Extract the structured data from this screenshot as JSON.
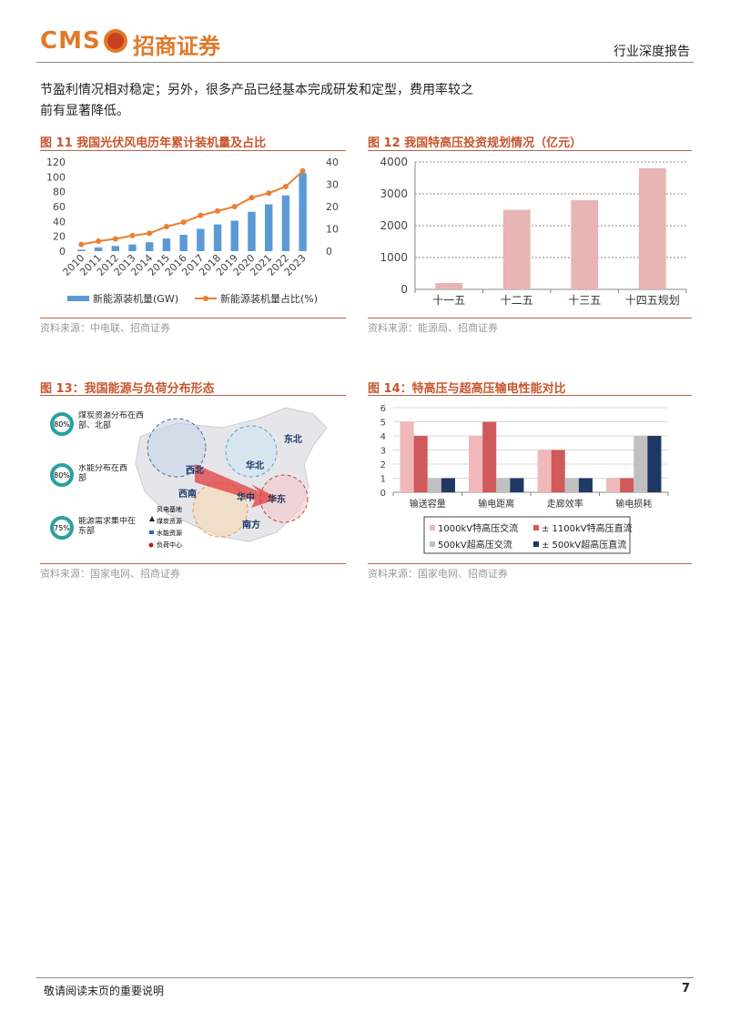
{
  "header": {
    "logo_latin": "CMS",
    "logo_cn": "招商证券",
    "report_type": "行业深度报告"
  },
  "body": {
    "lines": [
      "节盈利情况相对稳定；另外，很多产品已经基本完成研发和定型，费用率较之",
      "前有显著降低。"
    ]
  },
  "chart_data": [
    {
      "type": "bar",
      "title": "图 11 我国光伏风电历年累计装机量及占比",
      "source": "资料来源：中电联、招商证券",
      "categories": [
        "2010",
        "2011",
        "2012",
        "2013",
        "2014",
        "2015",
        "2016",
        "2017",
        "2018",
        "2019",
        "2020",
        "2021",
        "2022",
        "2023"
      ],
      "series": [
        {
          "name": "新能源装机量(GW)",
          "color": "#5b9bd5",
          "values": [
            2,
            5,
            7,
            9,
            12,
            17,
            22,
            30,
            36,
            41,
            53,
            63,
            75,
            105
          ]
        },
        {
          "name": "新能源装机量占比(%)",
          "color": "#ed7d31",
          "type": "line",
          "axis": "y2",
          "values": [
            3,
            4.5,
            5.5,
            7,
            8,
            11,
            13,
            16,
            18,
            20,
            24,
            26,
            29,
            36
          ]
        }
      ],
      "ylim": [
        0,
        120
      ],
      "yticks": [
        0,
        20,
        40,
        60,
        80,
        100,
        120
      ],
      "y2lim": [
        0,
        40
      ],
      "y2ticks": [
        0,
        10,
        20,
        30,
        40
      ],
      "grid": false
    },
    {
      "type": "bar",
      "title": "图 12 我国特高压投资规划情况（亿元）",
      "source": "资料来源：能源局、招商证券",
      "categories": [
        "十一五",
        "十二五",
        "十三五",
        "十四五规划"
      ],
      "values": [
        200,
        2500,
        2800,
        3800
      ],
      "color": "#e8b4b4",
      "ylim": [
        0,
        4000
      ],
      "yticks": [
        0,
        1000,
        2000,
        3000,
        4000
      ],
      "grid": true
    },
    {
      "type": "bar",
      "title": "图 14：特高压与超高压输电性能对比",
      "source": "资料来源：国家电网、招商证券",
      "categories": [
        "输送容量",
        "输电距离",
        "走廊效率",
        "输电损耗"
      ],
      "series": [
        {
          "name": "1000kV特高压交流",
          "color": "#f0b8b8",
          "values": [
            5,
            4,
            3,
            1
          ]
        },
        {
          "name": "± 1100kV特高压直流",
          "color": "#d05a5a",
          "values": [
            4,
            5,
            3,
            1
          ]
        },
        {
          "name": "500kV超高压交流",
          "color": "#c0c0c0",
          "values": [
            1,
            1,
            1,
            4
          ]
        },
        {
          "name": "± 500kV超高压直流",
          "color": "#203864",
          "values": [
            1,
            1,
            1,
            4
          ]
        }
      ],
      "ylim": [
        0,
        6
      ],
      "yticks": [
        0,
        1,
        2,
        3,
        4,
        5,
        6
      ],
      "grid": true
    }
  ],
  "map_figure": {
    "title": "图 13：我国能源与负荷分布形态",
    "source": "资料来源：国家电网、招商证券",
    "rings": [
      {
        "label": "80%",
        "text": "煤炭资源分布在西部、北部"
      },
      {
        "label": "80%",
        "text": "水能分布在西部"
      },
      {
        "label": "75%",
        "text": "能源需求集中在东部"
      }
    ],
    "regions": [
      "西北",
      "华北",
      "东北",
      "西南",
      "华中",
      "华东",
      "南方"
    ],
    "legend": [
      "风电基地",
      "煤炭资源",
      "水能资源",
      "负荷中心"
    ]
  },
  "footer": {
    "note": "敬请阅读末页的重要说明",
    "page": "7"
  }
}
